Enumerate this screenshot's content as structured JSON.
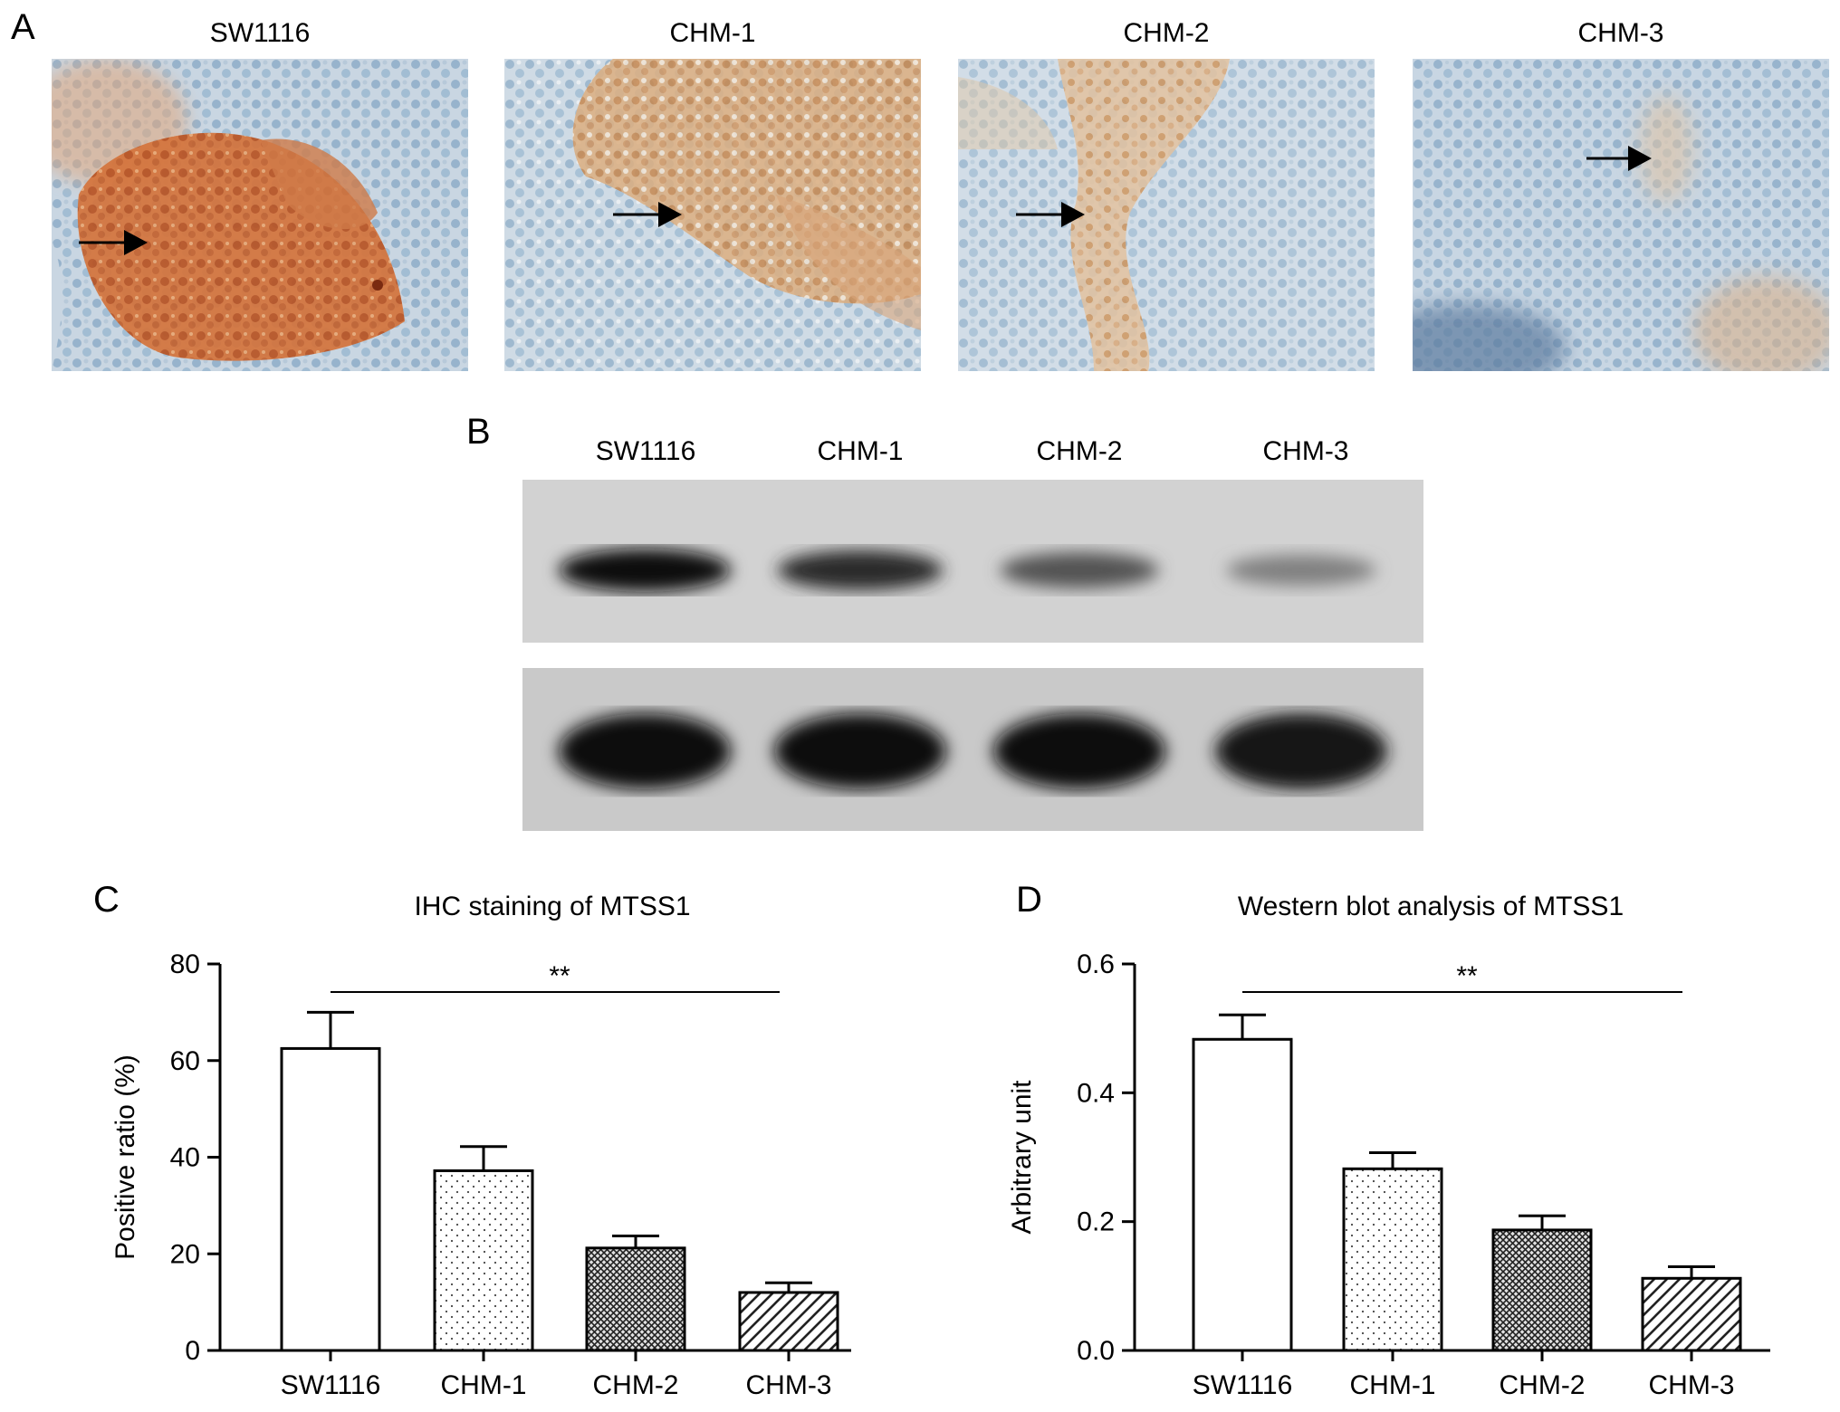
{
  "panels": {
    "a": {
      "letter": "A",
      "samples": [
        "SW1116",
        "CHM-1",
        "CHM-2",
        "CHM-3"
      ]
    },
    "b": {
      "letter": "B",
      "lanes": [
        "SW1116",
        "CHM-1",
        "CHM-2",
        "CHM-3"
      ],
      "band_intensity_top": [
        1.0,
        0.82,
        0.62,
        0.38
      ],
      "band_intensity_bottom": [
        1.0,
        1.0,
        1.0,
        0.95
      ]
    },
    "c": {
      "letter": "C"
    },
    "d": {
      "letter": "D"
    }
  },
  "chart_data": [
    {
      "type": "bar",
      "title": "IHC staining of MTSS1",
      "ylabel": "Positive ratio (%)",
      "categories": [
        "SW1116",
        "CHM-1",
        "CHM-2",
        "CHM-3"
      ],
      "values": [
        62.5,
        37.2,
        21.2,
        12.0
      ],
      "errors": [
        7.5,
        5.0,
        2.5,
        2.0
      ],
      "ylim": [
        0,
        80
      ],
      "yticks": [
        "0",
        "20",
        "40",
        "60",
        "80"
      ],
      "ytick_values": [
        0,
        20,
        40,
        60,
        80
      ],
      "significance": "**",
      "patterns": [
        "none",
        "dots",
        "crosshatch",
        "diagonal"
      ]
    },
    {
      "type": "bar",
      "title": "Western blot analysis of MTSS1",
      "ylabel": "Arbitrary unit",
      "categories": [
        "SW1116",
        "CHM-1",
        "CHM-2",
        "CHM-3"
      ],
      "values": [
        0.483,
        0.282,
        0.187,
        0.112
      ],
      "errors": [
        0.038,
        0.025,
        0.022,
        0.018
      ],
      "ylim": [
        0,
        0.6
      ],
      "yticks": [
        "0.0",
        "0.2",
        "0.4",
        "0.6"
      ],
      "ytick_values": [
        0,
        0.2,
        0.4,
        0.6
      ],
      "significance": "**",
      "patterns": [
        "none",
        "dots",
        "crosshatch",
        "diagonal"
      ]
    }
  ]
}
